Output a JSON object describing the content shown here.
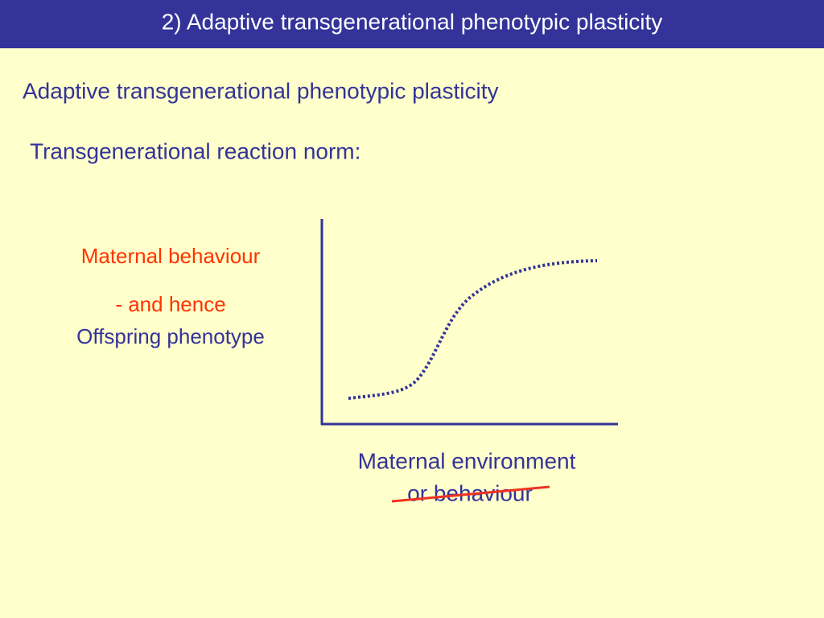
{
  "header": {
    "title": "2) Adaptive transgenerational phenotypic plasticity"
  },
  "heading": "Adaptive transgenerational phenotypic plasticity",
  "subheading": "Transgenerational reaction norm:",
  "diagram": {
    "y_label": {
      "line1": "Maternal behaviour",
      "line2": "- and hence",
      "line3": "Offspring phenotype"
    },
    "x_label": {
      "line1": "Maternal environment",
      "line2": "or behaviour"
    }
  }
}
